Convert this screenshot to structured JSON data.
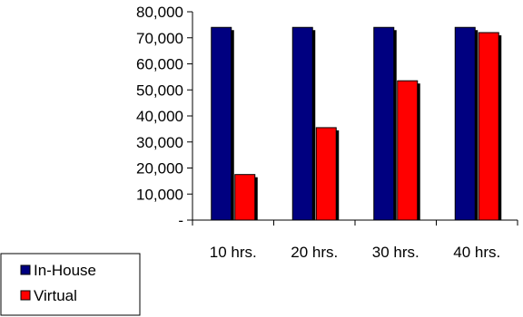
{
  "chart_data": {
    "type": "bar",
    "categories": [
      "10 hrs.",
      "20 hrs.",
      "30 hrs.",
      "40 hrs."
    ],
    "series": [
      {
        "name": "In-House",
        "values": [
          74000,
          74000,
          74000,
          74000
        ],
        "color": "#000080"
      },
      {
        "name": "Virtual",
        "values": [
          17500,
          35500,
          53500,
          72000
        ],
        "color": "#ff0000"
      }
    ],
    "ylim": [
      0,
      80000
    ],
    "yticks": [
      0,
      10000,
      20000,
      30000,
      40000,
      50000,
      60000,
      70000,
      80000
    ],
    "ytick_labels": [
      "-",
      "10,000",
      "20,000",
      "30,000",
      "40,000",
      "50,000",
      "60,000",
      "70,000",
      "80,000"
    ],
    "grid": false,
    "legend_position": "bottom-left",
    "title": "",
    "xlabel": "",
    "ylabel": ""
  }
}
